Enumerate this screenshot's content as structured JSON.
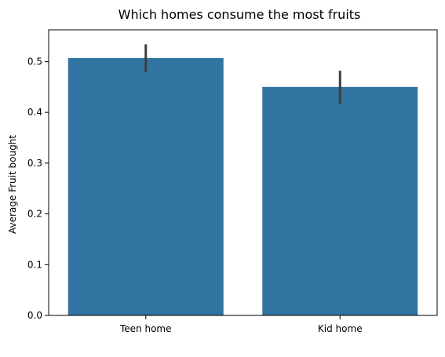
{
  "chart_data": {
    "type": "bar",
    "title": "Which homes consume the most fruits",
    "xlabel": "",
    "ylabel": "Average Fruit bought",
    "categories": [
      "Teen home",
      "Kid home"
    ],
    "values": [
      0.507,
      0.45
    ],
    "error_bars": [
      {
        "low": 0.479,
        "high": 0.534
      },
      {
        "low": 0.417,
        "high": 0.482
      }
    ],
    "ylim": [
      0,
      0.5625
    ],
    "yticks": [
      "0.0",
      "0.1",
      "0.2",
      "0.3",
      "0.4",
      "0.5"
    ],
    "grid": false,
    "bar_color": "#3274a1",
    "error_color": "#3d3d3d"
  }
}
